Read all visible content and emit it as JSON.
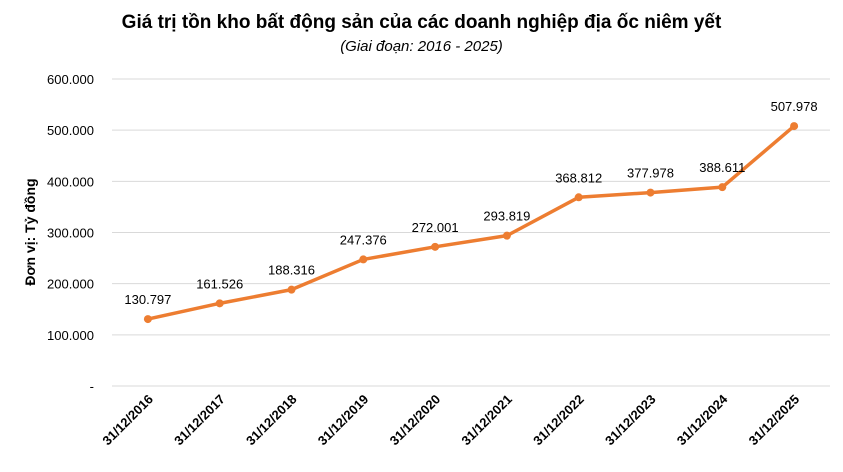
{
  "chart_data": {
    "type": "line",
    "title": "Giá trị tồn kho bất động sản của các doanh nghiệp địa ốc niêm yết",
    "subtitle": "(Giai đoạn: 2016 - 2025)",
    "ylabel": "Đơn vị: Tỷ đồng",
    "xlabel": "",
    "categories": [
      "31/12/2016",
      "31/12/2017",
      "31/12/2018",
      "31/12/2019",
      "31/12/2020",
      "31/12/2021",
      "31/12/2022",
      "31/12/2023",
      "31/12/2024",
      "31/12/2025"
    ],
    "series": [
      {
        "values": [
          130797,
          161526,
          188316,
          247376,
          272001,
          293819,
          368812,
          377978,
          388611,
          507978
        ],
        "labels": [
          "130.797",
          "161.526",
          "188.316",
          "247.376",
          "272.001",
          "293.819",
          "368.812",
          "377.978",
          "388.611",
          "507.978"
        ],
        "color": "#ED7D31"
      }
    ],
    "ylim": [
      0,
      600000
    ],
    "yticks": [
      0,
      100000,
      200000,
      300000,
      400000,
      500000,
      600000
    ],
    "ytick_labels": [
      "-",
      "100.000",
      "200.000",
      "300.000",
      "400.000",
      "500.000",
      "600.000"
    ],
    "grid": true,
    "gridline_color": "#d9d9d9",
    "legend": "none"
  }
}
